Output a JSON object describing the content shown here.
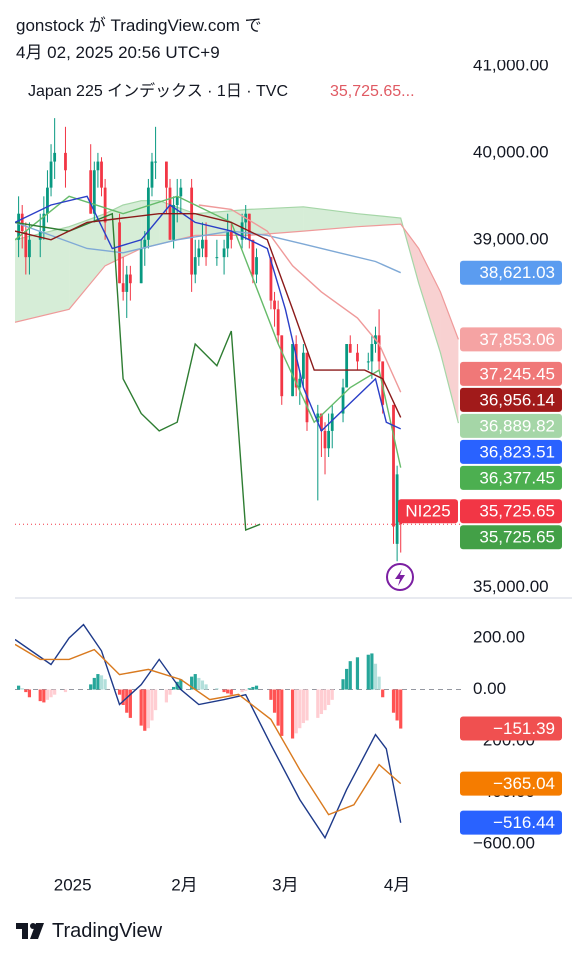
{
  "header": {
    "line1": "gonstock が TradingView.com で",
    "line2": "4月 02, 2025 20:56 UTC+9"
  },
  "chart_data": [
    {
      "type": "candlestick",
      "title": "Japan 225 インデックス · 1日 · TVC",
      "title_value": "35,725.65...",
      "xlim": [
        -15,
        109
      ],
      "ylim": [
        34900,
        41000
      ],
      "yticks": [
        {
          "value": 41000,
          "label": "41,000.00"
        },
        {
          "value": 40000,
          "label": "40,000.00"
        },
        {
          "value": 39000,
          "label": "39,000.00"
        },
        {
          "value": 35000,
          "label": "35,000.00"
        }
      ],
      "up_color": "#089981",
      "down_color": "#f23645",
      "x": [
        -14,
        -13,
        -12,
        -11,
        -8,
        -7,
        -6,
        -5,
        -4,
        -1,
        6,
        7,
        8,
        9,
        10,
        14,
        15,
        16,
        17,
        20,
        21,
        22,
        23,
        24,
        27,
        28,
        29,
        30,
        31,
        34,
        35,
        36,
        37,
        38,
        41,
        43,
        44,
        45,
        48,
        49,
        50,
        51,
        52,
        56,
        57,
        58,
        59,
        62,
        63,
        64,
        65,
        66,
        69,
        70,
        71,
        72,
        73,
        76,
        77,
        78,
        80,
        83,
        84,
        85,
        86,
        87,
        90,
        91,
        92
      ],
      "open": [
        39000,
        39300,
        39100,
        38800,
        39000,
        39100,
        39300,
        39600,
        39900,
        40000,
        39800,
        39300,
        39800,
        39900,
        39600,
        39200,
        38500,
        38400,
        38600,
        38500,
        38900,
        39000,
        39600,
        39900,
        39900,
        39600,
        39000,
        39400,
        39500,
        39600,
        38600,
        38800,
        38900,
        39000,
        38800,
        38800,
        38900,
        39100,
        39000,
        39200,
        39300,
        39000,
        38600,
        38800,
        38300,
        38200,
        37900,
        37200,
        37800,
        37300,
        37400,
        37700,
        36900,
        37000,
        36800,
        36600,
        36800,
        37000,
        37300,
        37800,
        37700,
        37600,
        37600,
        37800,
        37900,
        37600,
        37100,
        35500,
        35900
      ],
      "high": [
        39500,
        39400,
        39200,
        39200,
        39300,
        39500,
        39800,
        40100,
        40400,
        40300,
        40100,
        39900,
        40000,
        39950,
        39700,
        39300,
        38800,
        38700,
        38700,
        39000,
        39100,
        39700,
        40000,
        40300,
        39900,
        39700,
        39500,
        39700,
        39700,
        39700,
        39000,
        39000,
        39200,
        39200,
        39000,
        39000,
        39300,
        39200,
        39300,
        39400,
        39300,
        39000,
        38900,
        38800,
        38400,
        38300,
        37900,
        37800,
        37900,
        37500,
        37800,
        37700,
        37100,
        37000,
        36900,
        37000,
        37100,
        37400,
        37800,
        37900,
        37800,
        37700,
        37900,
        38000,
        38200,
        37600,
        37100,
        36400,
        36000
      ],
      "low": [
        38800,
        38900,
        38600,
        38600,
        38800,
        39000,
        39200,
        39500,
        39700,
        39600,
        39300,
        39200,
        39600,
        39500,
        39000,
        38500,
        38300,
        38100,
        38300,
        38500,
        38700,
        38900,
        39500,
        39700,
        39300,
        39000,
        38900,
        39200,
        39300,
        38400,
        38500,
        38700,
        38800,
        38700,
        38700,
        38600,
        38800,
        38900,
        38900,
        39000,
        38900,
        38500,
        38500,
        38200,
        38000,
        37800,
        37100,
        37200,
        37200,
        37100,
        37300,
        36800,
        36000,
        36500,
        36300,
        36500,
        36600,
        36900,
        37300,
        37700,
        37500,
        37500,
        37400,
        37700,
        37500,
        37000,
        35500,
        35300,
        35400
      ],
      "close": [
        39300,
        39100,
        38800,
        39000,
        39100,
        39300,
        39600,
        39900,
        40000,
        39800,
        39300,
        39800,
        39900,
        39600,
        39200,
        38500,
        38400,
        38600,
        38500,
        38900,
        39000,
        39600,
        39900,
        39900,
        39600,
        39000,
        39400,
        39500,
        39600,
        38600,
        38800,
        38900,
        39000,
        38800,
        38800,
        38900,
        39100,
        39000,
        39200,
        39300,
        39000,
        38600,
        38800,
        38300,
        38200,
        37900,
        37200,
        37800,
        37300,
        37400,
        37700,
        36900,
        37000,
        36800,
        36600,
        36800,
        37000,
        37300,
        37800,
        37700,
        37600,
        37600,
        37800,
        37900,
        37600,
        37100,
        35700,
        36300,
        35725.65
      ],
      "cloud": {
        "up_color": "#a5d6a7",
        "down_color": "#ef9a9a",
        "x": [
          -15,
          0,
          10,
          15,
          20,
          25,
          35,
          50,
          65,
          80,
          92,
          97,
          103,
          108
        ],
        "span_a": [
          39000,
          39150,
          39300,
          39400,
          39450,
          39450,
          39300,
          39350,
          39380,
          39300,
          39250,
          38500,
          37700,
          36889.82
        ],
        "span_b": [
          38050,
          38200,
          38700,
          38800,
          38900,
          38950,
          39050,
          39050,
          39100,
          39150,
          39180,
          38900,
          38400,
          37853.06
        ]
      },
      "series": [
        {
          "color": "#7fa9d6",
          "x": [
            -15,
            -5,
            5,
            15,
            30,
            45,
            55,
            65,
            75,
            85,
            92
          ],
          "values": [
            39200,
            39050,
            38900,
            38850,
            39000,
            39100,
            39050,
            38950,
            38850,
            38750,
            38621.03
          ]
        },
        {
          "color": "#ef9a9a",
          "x": [
            36,
            45,
            55,
            62,
            70,
            80,
            86,
            92
          ],
          "values": [
            39400,
            39350,
            39100,
            38700,
            38400,
            38100,
            37800,
            37245.45
          ]
        },
        {
          "color": "#66bb6a",
          "x": [
            -15,
            0,
            15,
            30,
            45,
            58,
            68,
            78,
            86,
            92
          ],
          "values": [
            39000,
            39500,
            39300,
            39500,
            39200,
            37800,
            36900,
            37300,
            37500,
            36377.45
          ]
        },
        {
          "color": "#2e7d32",
          "x": [
            -15,
            0,
            12,
            15,
            20,
            25,
            30,
            35,
            41,
            45,
            49,
            53
          ],
          "values": [
            39200,
            39100,
            39300,
            37400,
            37000,
            36800,
            36900,
            37800,
            37550,
            37950,
            35660,
            35725.65
          ]
        },
        {
          "color": "#2a3fc7",
          "x": [
            -15,
            -5,
            5,
            12,
            20,
            28,
            35,
            45,
            55,
            60,
            65,
            70,
            75,
            85,
            88,
            92
          ],
          "values": [
            39200,
            39400,
            39500,
            38900,
            39000,
            39400,
            39200,
            39100,
            38900,
            38200,
            37300,
            36800,
            37000,
            37400,
            36900,
            36823.51
          ]
        },
        {
          "color": "#8b1a1a",
          "x": [
            -15,
            -5,
            5,
            15,
            25,
            35,
            45,
            55,
            62,
            68,
            75,
            82,
            87,
            92
          ],
          "values": [
            39100,
            39000,
            39200,
            39250,
            39300,
            39300,
            39200,
            39000,
            38200,
            37500,
            37500,
            37500,
            37400,
            36956.14
          ]
        }
      ],
      "price_labels": [
        {
          "value": 38621.03,
          "label": "38,621.03",
          "color": "#5b9cf0"
        },
        {
          "value": 37853.06,
          "label": "37,853.06",
          "color": "#f5a3a3"
        },
        {
          "value": 37245.45,
          "label": "37,245.45",
          "color": "#f07878"
        },
        {
          "value": 36956.14,
          "label": "36,956.14",
          "color": "#a11a1a"
        },
        {
          "value": 36889.82,
          "label": "36,889.82",
          "color": "#a5d6a7"
        },
        {
          "value": 36823.51,
          "label": "36,823.51",
          "color": "#2962ff"
        },
        {
          "value": 36377.45,
          "label": "36,377.45",
          "color": "#4caf50"
        },
        {
          "value": 35725.65,
          "label": "35,725.65",
          "color": "#f23645",
          "symbol": "NI225"
        },
        {
          "value": 35725.65,
          "label": "35,725.65",
          "color": "#43a047"
        }
      ]
    },
    {
      "type": "macd",
      "xlim": [
        -15,
        109
      ],
      "ylim": [
        -700,
        355
      ],
      "yticks": [
        {
          "value": 200,
          "label": "200.00"
        },
        {
          "value": 0,
          "label": "0.00"
        },
        {
          "value": -200,
          "label": "−200.00"
        },
        {
          "value": -400,
          "label": "−400.00"
        },
        {
          "value": -600,
          "label": "−600.00"
        }
      ],
      "xticks": [
        {
          "value": 1,
          "label": "2025"
        },
        {
          "value": 32,
          "label": "2月"
        },
        {
          "value": 60,
          "label": "3月"
        },
        {
          "value": 91,
          "label": "4月"
        }
      ],
      "histogram": {
        "colors": [
          "#26a69a",
          "#b2dfdb",
          "#ff5252",
          "#ffcdd2"
        ],
        "x": [
          -14,
          -13,
          -12,
          -11,
          -8,
          -7,
          -6,
          -5,
          -4,
          -1,
          6,
          7,
          8,
          9,
          10,
          14,
          15,
          16,
          17,
          20,
          21,
          22,
          23,
          24,
          27,
          28,
          29,
          30,
          31,
          34,
          35,
          36,
          37,
          38,
          41,
          43,
          44,
          45,
          48,
          49,
          50,
          51,
          52,
          56,
          57,
          58,
          59,
          62,
          63,
          64,
          65,
          66,
          69,
          70,
          71,
          72,
          73,
          76,
          77,
          78,
          80,
          83,
          84,
          85,
          86,
          87,
          90,
          91,
          92
        ],
        "values": [
          15,
          5,
          -10,
          -30,
          -45,
          -50,
          -40,
          -30,
          -20,
          -10,
          20,
          45,
          60,
          55,
          40,
          -20,
          -60,
          -90,
          -110,
          -140,
          -160,
          -150,
          -120,
          -80,
          -50,
          -20,
          10,
          30,
          40,
          50,
          60,
          45,
          35,
          20,
          5,
          -10,
          -15,
          -20,
          -10,
          -5,
          5,
          10,
          15,
          -40,
          -90,
          -140,
          -180,
          -190,
          -170,
          -150,
          -130,
          -120,
          -110,
          -95,
          -80,
          -60,
          -40,
          40,
          80,
          110,
          125,
          135,
          140,
          100,
          50,
          -30,
          -90,
          -120,
          -151.39
        ]
      },
      "series": [
        {
          "color": "#1e3a8a",
          "x": [
            -15,
            -5,
            0,
            4,
            9,
            14,
            20,
            25,
            31,
            36,
            43,
            49,
            56,
            64,
            71,
            77,
            85,
            88,
            92
          ],
          "values": [
            194,
            97,
            200,
            252,
            150,
            -58,
            19,
            117,
            0,
            -58,
            -39,
            -20,
            -214,
            -427,
            -575,
            -388,
            -175,
            -230,
            -516.44
          ]
        },
        {
          "color": "#d97a1f",
          "x": [
            -15,
            -8,
            0,
            7,
            14,
            22,
            31,
            39,
            47,
            56,
            64,
            72,
            79,
            86,
            92
          ],
          "values": [
            175,
            117,
            117,
            155,
            58,
            78,
            39,
            -39,
            -19,
            -116,
            -311,
            -485,
            -447,
            -291,
            -365.04
          ]
        }
      ],
      "price_labels": [
        {
          "value": -151.39,
          "label": "−151.39",
          "color": "#f05050"
        },
        {
          "value": -365.04,
          "label": "−365.04",
          "color": "#f57c00"
        },
        {
          "value": -516.44,
          "label": "−516.44",
          "color": "#2962ff"
        }
      ]
    }
  ],
  "footer": {
    "brand": "TradingView"
  }
}
